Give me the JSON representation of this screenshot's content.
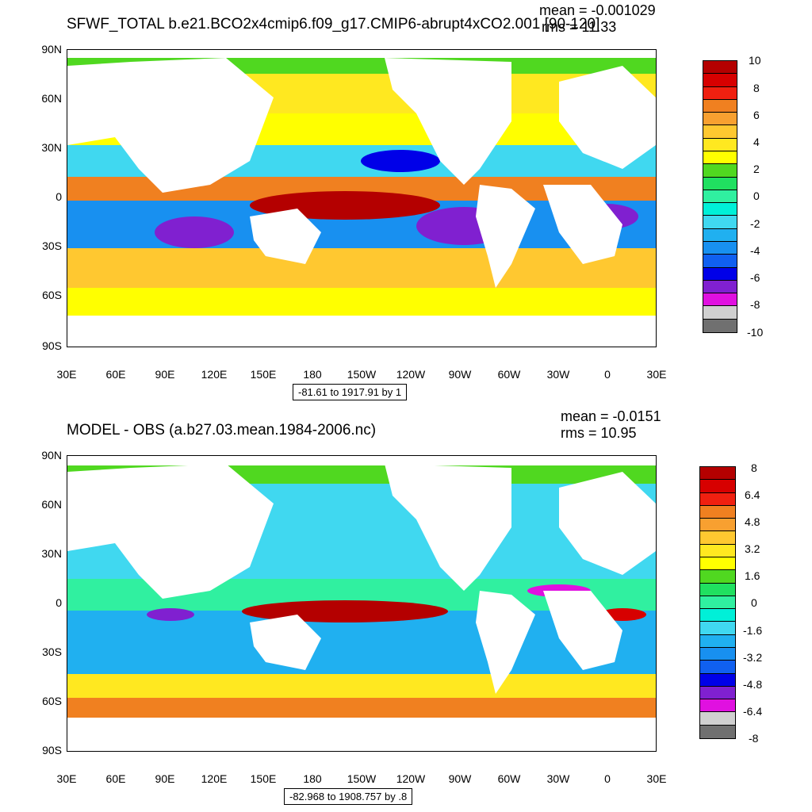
{
  "chart_data": [
    {
      "type": "heatmap",
      "title": "SFWF_TOTAL b.e21.BCO2x4cmip6.f09_g17.CMIP6-abrupt4xCO2.001 [90-120]",
      "mean_label": "mean = -0.001029",
      "rms_label": "rms = 11.33",
      "x_ticks": [
        "30E",
        "60E",
        "90E",
        "120E",
        "150E",
        "180",
        "150W",
        "120W",
        "90W",
        "60W",
        "30W",
        "0",
        "30E"
      ],
      "y_ticks": [
        "90N",
        "60N",
        "30N",
        "0",
        "30S",
        "60S",
        "90S"
      ],
      "colorbar_labels": [
        "10",
        "8",
        "6",
        "4",
        "2",
        "0",
        "-2",
        "-4",
        "-6",
        "-8",
        "-10"
      ],
      "colorbar_colors": [
        "#B40000",
        "#D70000",
        "#F02010",
        "#F08020",
        "#F8A030",
        "#FFC830",
        "#FFE820",
        "#FFFF00",
        "#50D820",
        "#20E060",
        "#30F0A0",
        "#00F0D8",
        "#40D8F0",
        "#20B0F0",
        "#1890F0",
        "#1060F0",
        "#0000E8",
        "#8020D0",
        "#E010E0",
        "#D0D0D0",
        "#707070"
      ],
      "range_label": "-81.61 to 1917.91 by 1"
    },
    {
      "type": "heatmap",
      "title": "MODEL - OBS (a.b27.03.mean.1984-2006.nc)",
      "mean_label": "mean = -0.0151",
      "rms_label": "rms = 10.95",
      "x_ticks": [
        "30E",
        "60E",
        "90E",
        "120E",
        "150E",
        "180",
        "150W",
        "120W",
        "90W",
        "60W",
        "30W",
        "0",
        "30E"
      ],
      "y_ticks": [
        "90N",
        "60N",
        "30N",
        "0",
        "30S",
        "60S",
        "90S"
      ],
      "colorbar_labels": [
        "8",
        "6.4",
        "4.8",
        "3.2",
        "1.6",
        "0",
        "-1.6",
        "-3.2",
        "-4.8",
        "-6.4",
        "-8"
      ],
      "colorbar_colors": [
        "#B40000",
        "#D70000",
        "#F02010",
        "#F08020",
        "#F8A030",
        "#FFC830",
        "#FFE820",
        "#FFFF00",
        "#50D820",
        "#20E060",
        "#30F0A0",
        "#00F0D8",
        "#40D8F0",
        "#20B0F0",
        "#1890F0",
        "#1060F0",
        "#0000E8",
        "#8020D0",
        "#E010E0",
        "#D0D0D0",
        "#707070"
      ],
      "range_label": "-82.968 to 1908.757 by .8"
    }
  ]
}
